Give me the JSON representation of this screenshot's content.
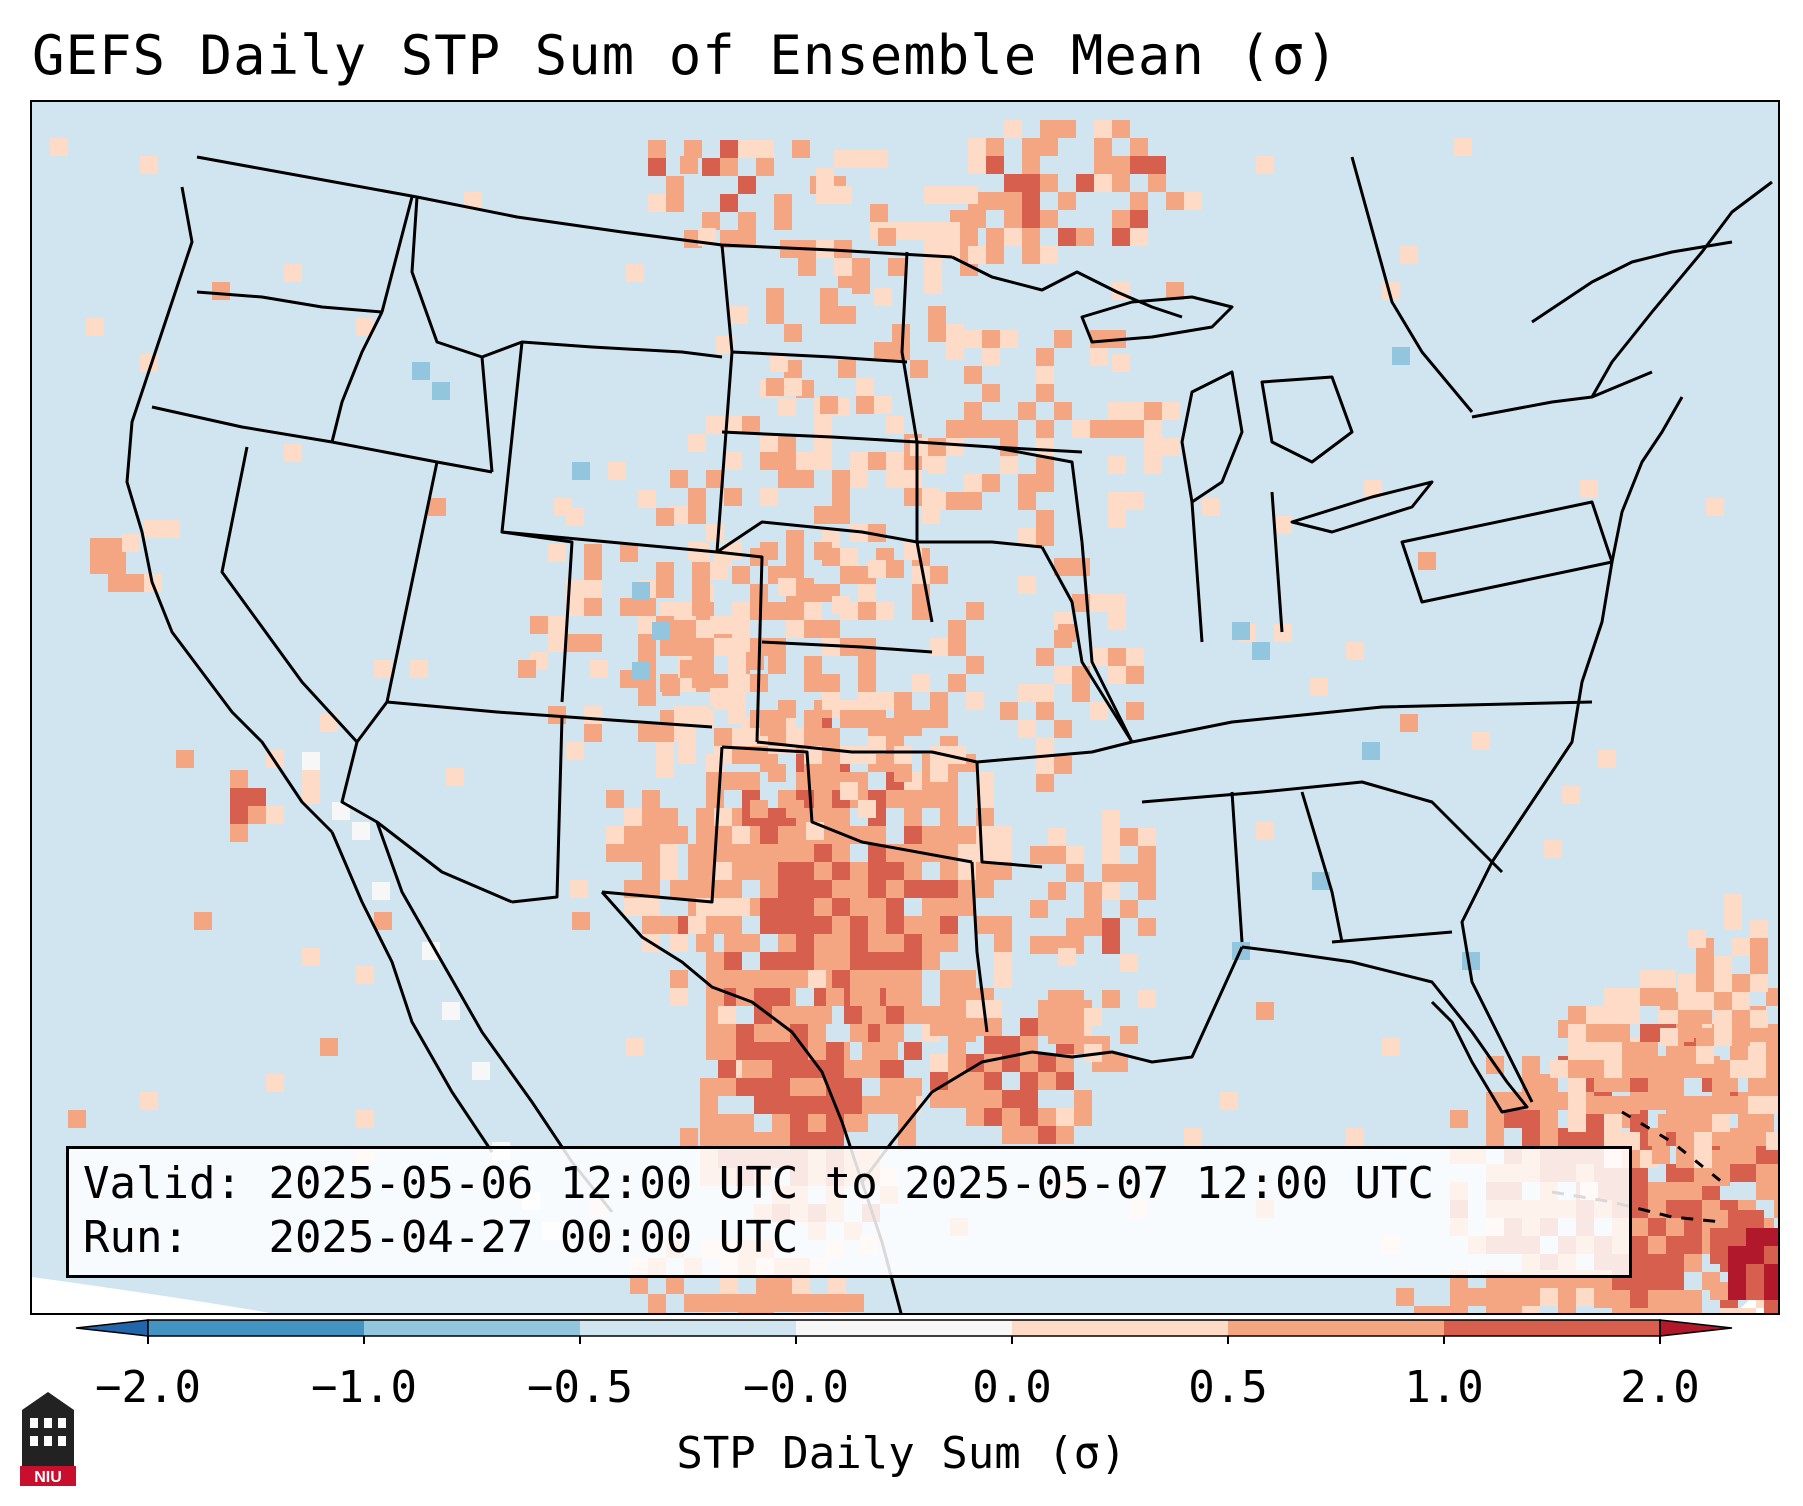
{
  "title": "GEFS Daily STP Sum of Ensemble Mean (σ)",
  "info": {
    "valid_label": "Valid:",
    "valid_value": "2025-05-06 12:00 UTC to 2025-05-07 12:00 UTC",
    "run_label": "Run:",
    "run_value": "2025-04-27 00:00 UTC"
  },
  "colorbar": {
    "label": "STP Daily Sum (σ)",
    "ticks": [
      "−2.0",
      "−1.0",
      "−0.5",
      "−0.0",
      "0.0",
      "0.5",
      "1.0",
      "2.0"
    ],
    "colors": [
      "#4393c3",
      "#92c5de",
      "#d1e5f0",
      "#f7f7f7",
      "#fddbc7",
      "#f4a582",
      "#d6604d"
    ],
    "under_color": "#2166ac",
    "over_color": "#b2182b"
  },
  "map": {
    "background_color": "#d1e5f0",
    "projection": "Lambert Conformal",
    "region": "Contiguous United States, southern Canada, northern Mexico, Gulf of Mexico, Caribbean"
  },
  "logo": {
    "text": "NIU",
    "color": "#c8102e"
  },
  "icons": [
    "niu-logo-icon"
  ]
}
